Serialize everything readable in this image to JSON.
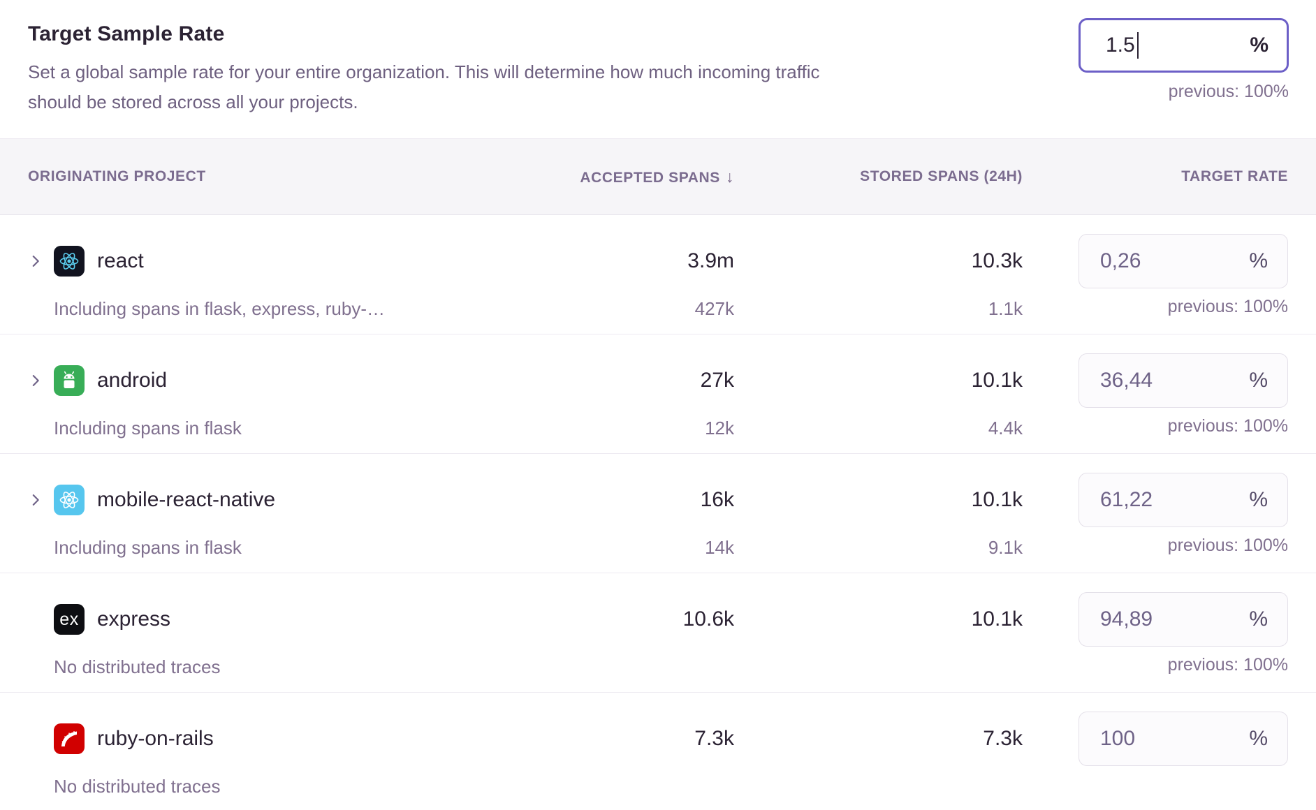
{
  "header": {
    "title": "Target Sample Rate",
    "description": "Set a global sample rate for your entire organization. This will determine how much incoming traffic should be stored across all your projects.",
    "rate_value": "1.5",
    "percent_sign": "%",
    "previous": "previous: 100%"
  },
  "table": {
    "percent_sign": "%",
    "sort_icon": "↓",
    "columns": {
      "project": "ORIGINATING PROJECT",
      "accepted": "ACCEPTED SPANS",
      "stored": "STORED SPANS (24H)",
      "rate": "TARGET RATE"
    },
    "rows": [
      {
        "name": "react",
        "icon": "react",
        "icon_name": "react-icon",
        "expandable": true,
        "subtitle": "Including spans in flask, express, ruby-…",
        "accepted": "3.9m",
        "accepted_sub": "427k",
        "stored": "10.3k",
        "stored_sub": "1.1k",
        "rate": "0,26",
        "previous": "previous: 100%"
      },
      {
        "name": "android",
        "icon": "android",
        "icon_name": "android-icon",
        "expandable": true,
        "subtitle": "Including spans in flask",
        "accepted": "27k",
        "accepted_sub": "12k",
        "stored": "10.1k",
        "stored_sub": "4.4k",
        "rate": "36,44",
        "previous": "previous: 100%"
      },
      {
        "name": "mobile-react-native",
        "icon": "react-native",
        "icon_name": "react-native-icon",
        "expandable": true,
        "subtitle": "Including spans in flask",
        "accepted": "16k",
        "accepted_sub": "14k",
        "stored": "10.1k",
        "stored_sub": "9.1k",
        "rate": "61,22",
        "previous": "previous: 100%"
      },
      {
        "name": "express",
        "icon": "express",
        "icon_name": "express-icon",
        "icon_text": "ex",
        "expandable": false,
        "subtitle": "No distributed traces",
        "accepted": "10.6k",
        "accepted_sub": "",
        "stored": "10.1k",
        "stored_sub": "",
        "rate": "94,89",
        "previous": "previous: 100%"
      },
      {
        "name": "ruby-on-rails",
        "icon": "rails",
        "icon_name": "rails-icon",
        "expandable": false,
        "subtitle": "No distributed traces",
        "accepted": "7.3k",
        "accepted_sub": "",
        "stored": "7.3k",
        "stored_sub": "",
        "rate": "100",
        "previous": ""
      }
    ]
  },
  "colors": {
    "accent": "#6c5fc7",
    "text_dark": "#2b2233",
    "text_muted": "#80708f",
    "header_bg": "#f6f5f8",
    "android_green": "#38ad57",
    "react_cyan": "#5bcdee",
    "react_native_blue": "#56c6ee",
    "rails_red": "#d10000",
    "express_black": "#0d0e12"
  }
}
